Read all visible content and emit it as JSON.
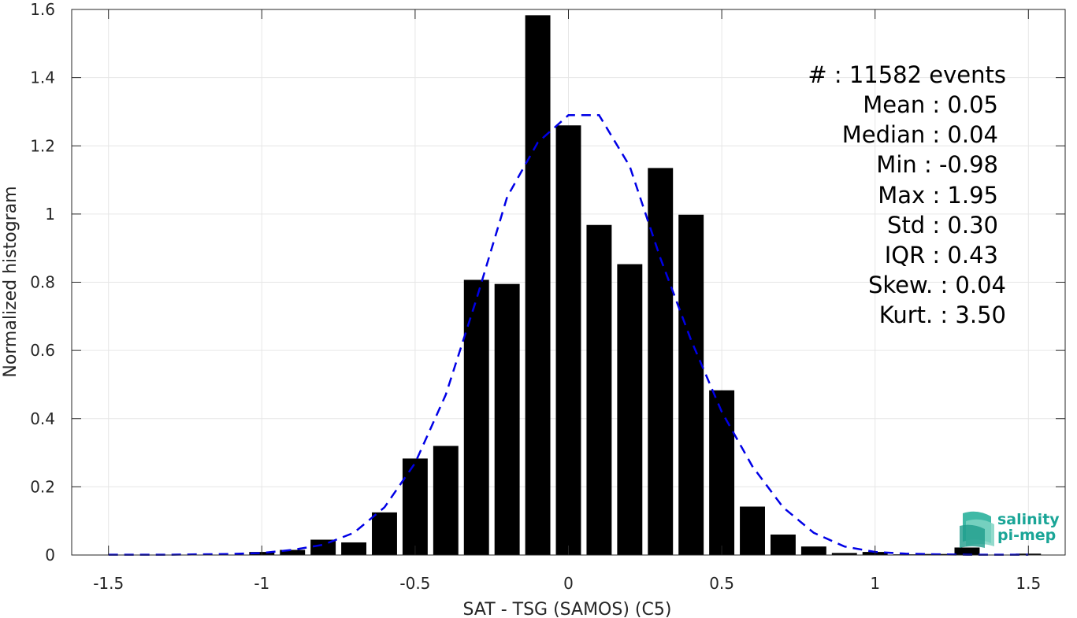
{
  "chart_data": {
    "type": "bar",
    "xlabel": "SAT - TSG (SAMOS) (C5)",
    "ylabel": "Normalized histogram",
    "xlim": [
      -1.62,
      1.62
    ],
    "ylim": [
      0,
      1.6
    ],
    "x_ticks": [
      -1.5,
      -1,
      -0.5,
      0,
      0.5,
      1,
      1.5
    ],
    "x_tick_labels": [
      "-1.5",
      "-1",
      "-0.5",
      "0",
      "0.5",
      "1",
      "1.5"
    ],
    "y_ticks": [
      0,
      0.2,
      0.4,
      0.6,
      0.8,
      1,
      1.2,
      1.4,
      1.6
    ],
    "y_tick_labels": [
      "0",
      "0.2",
      "0.4",
      "0.6",
      "0.8",
      "1",
      "1.2",
      "1.4",
      "1.6"
    ],
    "grid": true,
    "bar_color": "#000000",
    "bin_width": 0.1,
    "bars": {
      "x": [
        -1.5,
        -1.4,
        -1.3,
        -1.2,
        -1.1,
        -1.0,
        -0.9,
        -0.8,
        -0.7,
        -0.6,
        -0.5,
        -0.4,
        -0.3,
        -0.2,
        -0.1,
        0.0,
        0.1,
        0.2,
        0.3,
        0.4,
        0.5,
        0.6,
        0.7,
        0.8,
        0.9,
        1.0,
        1.1,
        1.2,
        1.3,
        1.4,
        1.5
      ],
      "values": [
        0,
        0,
        0,
        0,
        0,
        0.009,
        0.015,
        0.045,
        0.037,
        0.125,
        0.283,
        0.32,
        0.807,
        0.795,
        1.583,
        1.26,
        0.968,
        0.853,
        1.135,
        0.998,
        0.483,
        0.142,
        0.06,
        0.025,
        0.006,
        0.009,
        0.002,
        0.003,
        0.022,
        0.001,
        0.004
      ]
    },
    "fit": {
      "style": "dashed",
      "color": "#0000e6",
      "x": [
        -1.5,
        -1.4,
        -1.3,
        -1.2,
        -1.1,
        -1.0,
        -0.9,
        -0.8,
        -0.7,
        -0.6,
        -0.5,
        -0.4,
        -0.3,
        -0.2,
        -0.1,
        0.0,
        0.1,
        0.2,
        0.3,
        0.4,
        0.5,
        0.6,
        0.7,
        0.8,
        0.9,
        1.0,
        1.1,
        1.2,
        1.3,
        1.4,
        1.5
      ],
      "y": [
        0.001,
        0.001,
        0.001,
        0.002,
        0.003,
        0.006,
        0.015,
        0.03,
        0.065,
        0.14,
        0.27,
        0.47,
        0.75,
        1.05,
        1.21,
        1.29,
        1.29,
        1.14,
        0.87,
        0.63,
        0.42,
        0.26,
        0.14,
        0.065,
        0.025,
        0.009,
        0.004,
        0.002,
        0.001,
        0.001,
        0.001
      ]
    },
    "stats": [
      {
        "label": "#  : 11582 events"
      },
      {
        "label": "Mean : 0.05"
      },
      {
        "label": "Median : 0.04"
      },
      {
        "label": "Min : -0.98"
      },
      {
        "label": "Max : 1.95"
      },
      {
        "label": "Std : 0.30"
      },
      {
        "label": "IQR : 0.43"
      },
      {
        "label": "Skew. : 0.04"
      },
      {
        "label": "Kurt. : 3.50"
      }
    ],
    "stats_position": "top-right"
  },
  "logo": {
    "line1": "salinity",
    "line2": "pi-mep",
    "color": "#1aa597"
  }
}
